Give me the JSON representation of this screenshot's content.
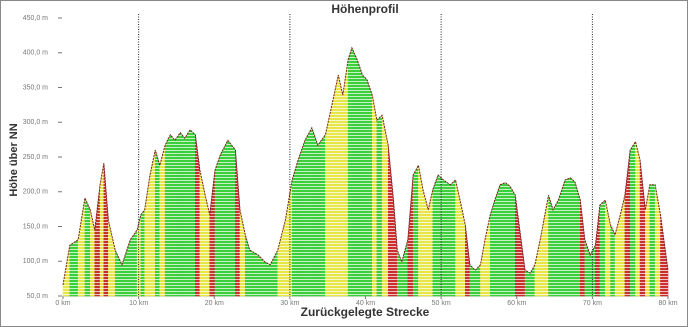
{
  "chart_data": {
    "type": "area",
    "title": "Höhenprofil",
    "x_label": "Zurückgelegte Strecke",
    "y_label": "Höhe über NN",
    "x": [
      0,
      0.9,
      2.0,
      2.9,
      3.6,
      4.2,
      4.9,
      5.4,
      6.0,
      6.9,
      7.8,
      8.9,
      9.8,
      10.3,
      10.8,
      11.5,
      12.2,
      12.8,
      13.5,
      14.2,
      14.8,
      15.5,
      16.1,
      16.8,
      17.5,
      18.1,
      18.8,
      19.4,
      20.1,
      20.8,
      21.8,
      22.8,
      23.4,
      24.1,
      24.7,
      25.8,
      26.7,
      27.4,
      28.4,
      29.4,
      30.3,
      31.1,
      32.0,
      32.9,
      33.7,
      34.7,
      35.7,
      36.4,
      37.0,
      37.7,
      38.2,
      38.9,
      39.6,
      40.2,
      40.9,
      41.5,
      42.2,
      43.0,
      43.7,
      44.2,
      44.8,
      45.6,
      46.3,
      47.0,
      47.6,
      48.3,
      48.9,
      49.6,
      50.3,
      51.2,
      51.9,
      52.5,
      53.2,
      53.8,
      54.5,
      55.2,
      55.8,
      56.5,
      57.1,
      57.8,
      58.5,
      59.1,
      59.8,
      60.4,
      61.1,
      61.8,
      62.4,
      63.1,
      64.2,
      64.8,
      65.5,
      66.4,
      67.1,
      67.7,
      68.4,
      69.0,
      69.7,
      70.4,
      71.0,
      71.7,
      72.4,
      73.0,
      73.7,
      74.3,
      75.0,
      75.7,
      76.3,
      77.0,
      77.6,
      78.3,
      79.0,
      80.0
    ],
    "values": [
      66,
      123,
      131,
      191,
      174,
      145,
      210,
      241,
      159,
      116,
      95,
      131,
      145,
      167,
      174,
      224,
      260,
      238,
      267,
      282,
      274,
      285,
      277,
      289,
      282,
      231,
      195,
      167,
      231,
      253,
      274,
      260,
      174,
      138,
      116,
      109,
      99,
      95,
      116,
      159,
      217,
      246,
      274,
      292,
      267,
      282,
      332,
      368,
      339,
      390,
      407,
      390,
      368,
      361,
      339,
      303,
      310,
      267,
      188,
      116,
      99,
      131,
      224,
      238,
      203,
      174,
      203,
      224,
      217,
      210,
      217,
      188,
      152,
      95,
      87,
      95,
      131,
      167,
      188,
      210,
      213,
      208,
      195,
      145,
      87,
      83,
      95,
      131,
      195,
      174,
      188,
      217,
      220,
      214,
      188,
      131,
      109,
      123,
      181,
      188,
      152,
      138,
      167,
      195,
      260,
      272,
      246,
      174,
      210,
      210,
      167,
      87
    ],
    "color": "#7a1f1f",
    "fill_colors": [
      "#3ccf3c",
      "#e6e64a",
      "#c83030"
    ],
    "xlim": [
      0,
      80
    ],
    "ylim": [
      50,
      450
    ],
    "xticks": [
      {
        "value": 0,
        "label": "0 km"
      },
      {
        "value": 10,
        "label": "10 km"
      },
      {
        "value": 20,
        "label": "20 km"
      },
      {
        "value": 30,
        "label": "30 km"
      },
      {
        "value": 40,
        "label": "40 km"
      },
      {
        "value": 50,
        "label": "50 km"
      },
      {
        "value": 60,
        "label": "60 km"
      },
      {
        "value": 70,
        "label": "70 km"
      },
      {
        "value": 80,
        "label": "80 km"
      }
    ],
    "yticks": [
      {
        "value": 50,
        "label": "50,0 m"
      },
      {
        "value": 100,
        "label": "100,0 m"
      },
      {
        "value": 150,
        "label": "150,0 m"
      },
      {
        "value": 200,
        "label": "200,0 m"
      },
      {
        "value": 250,
        "label": "250,0 m"
      },
      {
        "value": 300,
        "label": "300,0 m"
      },
      {
        "value": 350,
        "label": "350,0 m"
      },
      {
        "value": 400,
        "label": "400,0 m"
      },
      {
        "value": 450,
        "label": "450,0 m"
      }
    ],
    "vlines": [
      10,
      30,
      50,
      70
    ]
  }
}
